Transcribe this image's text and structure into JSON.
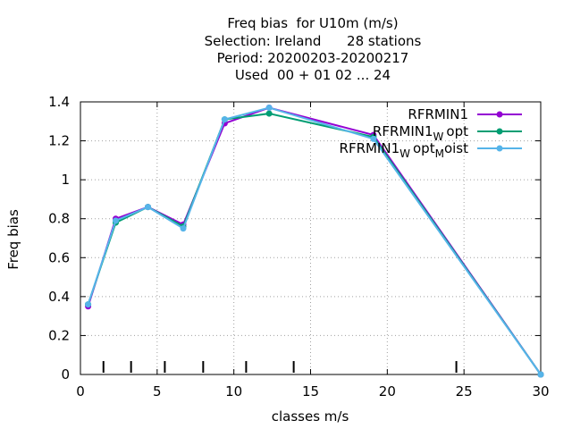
{
  "chart_data": {
    "type": "line",
    "title_lines": [
      "Freq bias  for U10m (m/s)",
      "Selection: Ireland      28 stations",
      "Period: 20200203-20200217",
      "Used  00 + 01 02 ... 24"
    ],
    "xlabel": "classes m/s",
    "ylabel": "Freq bias",
    "xlim": [
      0,
      30
    ],
    "ylim": [
      0,
      1.4
    ],
    "x_ticks": [
      0,
      5,
      10,
      15,
      20,
      25,
      30
    ],
    "y_ticks": [
      0,
      0.2,
      0.4,
      0.6,
      0.8,
      1,
      1.2,
      1.4
    ],
    "y_tick_labels": [
      "0",
      "0.2",
      "0.4",
      "0.6",
      "0.8",
      "1",
      "1.2",
      "1.4"
    ],
    "class_markers": [
      1.5,
      3.3,
      5.5,
      8.0,
      10.8,
      13.9,
      24.5
    ],
    "grid": true,
    "legend_position": "top-right",
    "series": [
      {
        "name": "RFRMIN1",
        "color": "#9400d3",
        "x": [
          0.5,
          2.3,
          4.4,
          6.7,
          9.4,
          12.3,
          19.1,
          30
        ],
        "y": [
          0.35,
          0.8,
          0.86,
          0.77,
          1.29,
          1.37,
          1.23,
          0.0
        ]
      },
      {
        "name": "RFRMIN1_W opt",
        "color": "#009e73",
        "x": [
          0.5,
          2.3,
          4.4,
          6.7,
          9.4,
          12.3,
          19.1,
          30
        ],
        "y": [
          0.36,
          0.78,
          0.86,
          0.76,
          1.31,
          1.34,
          1.22,
          0.0
        ]
      },
      {
        "name": "RFRMIN1_W opt_M oist",
        "color": "#56b4e9",
        "x": [
          0.5,
          2.3,
          4.4,
          6.7,
          9.4,
          12.3,
          19.1,
          30
        ],
        "y": [
          0.36,
          0.79,
          0.86,
          0.75,
          1.31,
          1.37,
          1.21,
          0.0
        ]
      }
    ]
  },
  "legend": [
    {
      "main": "RFRMIN1",
      "sub": "",
      "tail": "",
      "sub2": "",
      "tail2": ""
    },
    {
      "main": "RFRMIN1",
      "sub": "W",
      "tail": "opt",
      "sub2": "",
      "tail2": ""
    },
    {
      "main": "RFRMIN1",
      "sub": "W",
      "tail": "opt",
      "sub2": "M",
      "tail2": "oist"
    }
  ]
}
